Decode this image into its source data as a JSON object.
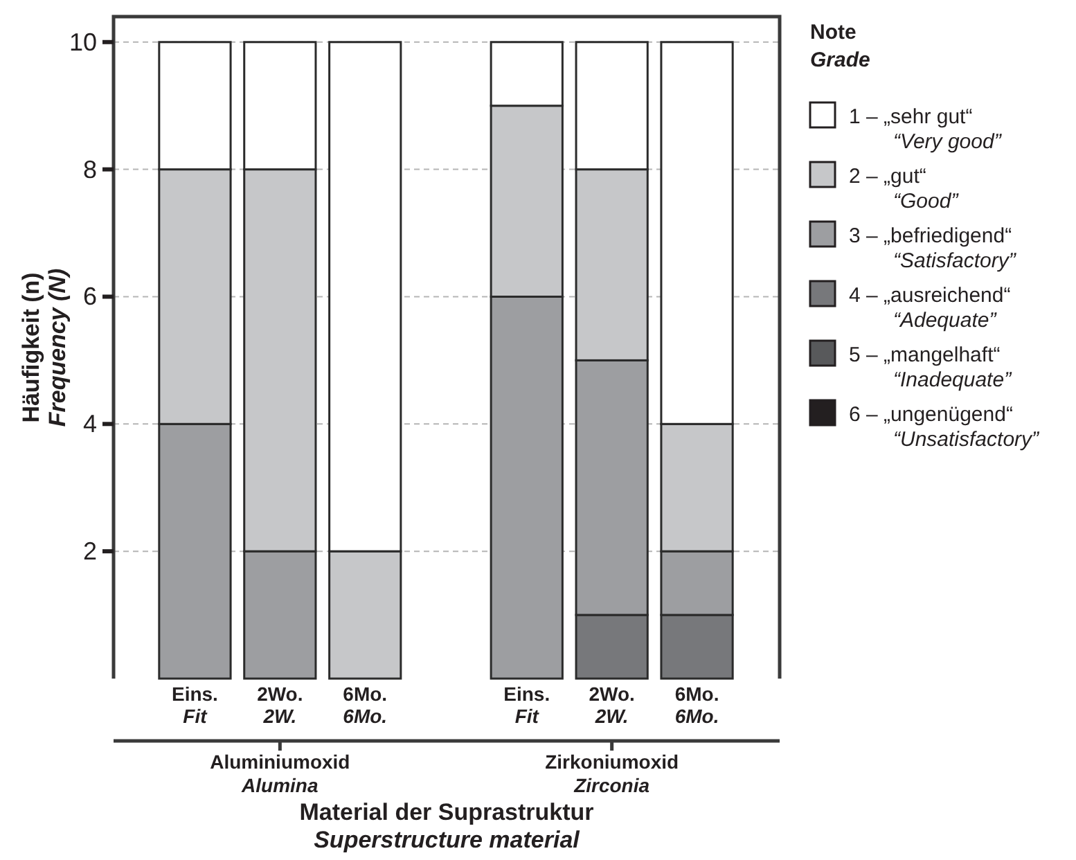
{
  "chart_data": {
    "type": "bar",
    "stacked": true,
    "ylabel": "Häufigkeit (n)\nFrequency (N)",
    "xlabel": "Material der Suprastruktur\nSuperstructure material",
    "legend_title": "Note\nGrade",
    "categories": [
      "Eins.\nFit",
      "2Wo.\n2W.",
      "6Mo.\n6Mo.",
      "Eins.\nFit",
      "2Wo.\n2W.",
      "6Mo.\n6Mo."
    ],
    "annotations": [
      "Aluminiumoxid\nAlumina",
      "Zirkoniumoxid\nZirconia"
    ],
    "series": [
      {
        "name": "6 – „ungenügend“\n“Unsatisfactory”",
        "color": "#231f20",
        "values": [
          0,
          0,
          0,
          0,
          0,
          0
        ]
      },
      {
        "name": "5 – „mangelhaft“\n“Inadequate”",
        "color": "#58595b",
        "values": [
          0,
          0,
          0,
          0,
          0,
          0
        ]
      },
      {
        "name": "4 – „ausreichend“\n“Adequate”",
        "color": "#77787b",
        "values": [
          0,
          0,
          0,
          0,
          1,
          1
        ]
      },
      {
        "name": "3 – „befriedigend“\n“Satisfactory”",
        "color": "#9d9ea1",
        "values": [
          4,
          2,
          0,
          6,
          4,
          1
        ]
      },
      {
        "name": "2 – „gut“\n“Good”",
        "color": "#c6c7c9",
        "values": [
          4,
          6,
          2,
          3,
          3,
          2
        ]
      },
      {
        "name": "1 – „sehr gut“\n“Very good”",
        "color": "#ffffff",
        "values": [
          2,
          2,
          8,
          1,
          2,
          6
        ]
      }
    ],
    "ylim": [
      0,
      10.4
    ],
    "yticks": [
      2,
      4,
      6,
      8,
      10
    ],
    "grid": "y",
    "legend": "right"
  }
}
